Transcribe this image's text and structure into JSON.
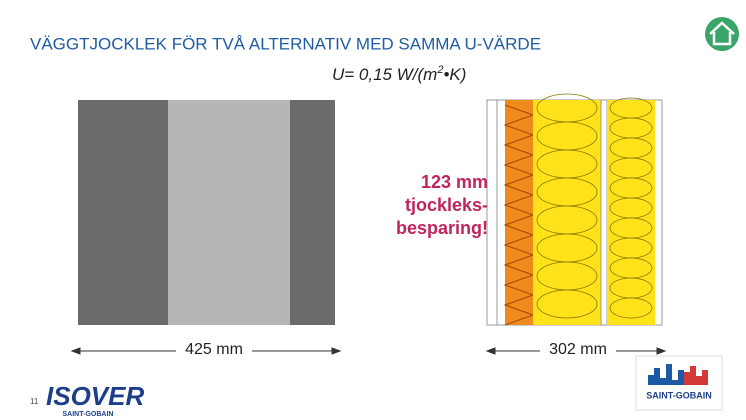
{
  "header": {
    "title": "VÄGGTJOCKLEK FÖR TVÅ ALTERNATIV MED SAMMA U-VÄRDE"
  },
  "formula": {
    "main": "U= 0,15 W/(m",
    "superscript": "2",
    "tail": "•K)"
  },
  "left_wall": {
    "dimension": "425 mm"
  },
  "right_wall": {
    "dimension": "302 mm"
  },
  "annotation": {
    "lines": [
      "123 mm",
      "tjockleks-",
      "besparing!"
    ]
  },
  "footer": {
    "page_number": "11",
    "logo_left": "ISOVER",
    "logo_left_sub": "SAINT-GOBAIN",
    "logo_right": "SAINT-GOBAIN"
  }
}
